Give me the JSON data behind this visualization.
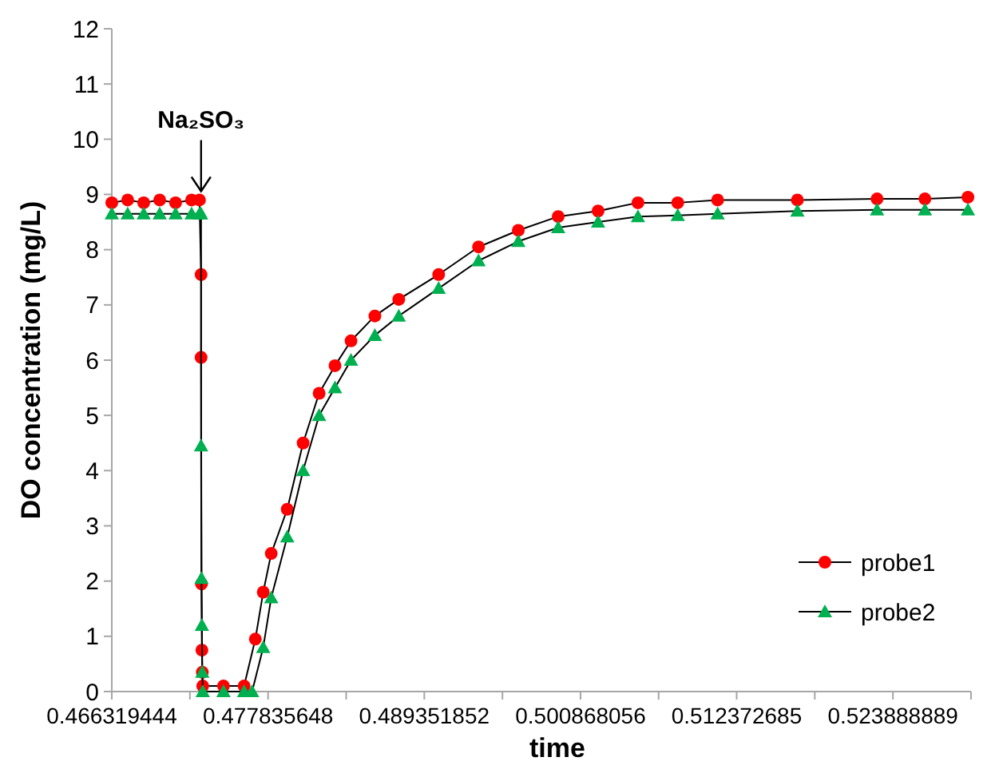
{
  "chart_data": {
    "type": "line",
    "xlabel": "time",
    "ylabel": "DO concentration (mg/L)",
    "xlim": [
      0.466319444,
      0.529647
    ],
    "ylim": [
      0,
      12
    ],
    "xticks": [
      0.466319444,
      {
        "value": 0.472077546,
        "label": null
      },
      0.477835648,
      {
        "value": 0.48359375,
        "label": null
      },
      0.489351852,
      {
        "value": 0.495109954,
        "label": null
      },
      0.500868056,
      {
        "value": 0.50662037,
        "label": null
      },
      0.512372685,
      {
        "value": 0.518130787,
        "label": null
      },
      0.523888889,
      {
        "value": 0.529647,
        "label": null
      }
    ],
    "yticks": [
      0,
      1,
      2,
      3,
      4,
      5,
      6,
      7,
      8,
      9,
      10,
      11,
      12
    ],
    "grid": false,
    "legend": "bottom right",
    "marker": "circle",
    "line_style": "solid",
    "annotations": [
      {
        "text": "Na₂SO₃",
        "x": 0.4729,
        "y": 9
      }
    ],
    "series": [
      {
        "name": "probe1",
        "color": "#ff0000",
        "marker": "circle",
        "x": [
          0.46632,
          0.46749,
          0.46867,
          0.46985,
          0.47102,
          0.4722,
          0.47278,
          0.4729,
          0.4729,
          0.47293,
          0.47296,
          0.47299,
          0.47302,
          0.47455,
          0.47607,
          0.4769,
          0.47748,
          0.47807,
          0.47925,
          0.48042,
          0.4816,
          0.48277,
          0.48395,
          0.48571,
          0.48747,
          0.49041,
          0.49335,
          0.49628,
          0.49922,
          0.50216,
          0.5051,
          0.50803,
          0.51097,
          0.51685,
          0.52272,
          0.52625,
          0.52942
        ],
        "values": [
          8.85,
          8.9,
          8.85,
          8.9,
          8.85,
          8.9,
          8.9,
          7.55,
          6.05,
          1.95,
          0.75,
          0.35,
          0.1,
          0.1,
          0.1,
          0.95,
          1.8,
          2.5,
          3.3,
          4.5,
          5.4,
          5.9,
          6.35,
          6.8,
          7.1,
          7.55,
          8.05,
          8.35,
          8.6,
          8.7,
          8.85,
          8.85,
          8.9,
          8.9,
          8.92,
          8.92,
          8.95
        ]
      },
      {
        "name": "probe2",
        "color": "#00b050",
        "marker": "triangle",
        "x": [
          0.46632,
          0.46749,
          0.46867,
          0.46985,
          0.47102,
          0.4722,
          0.47278,
          0.4729,
          0.4729,
          0.47293,
          0.47296,
          0.47299,
          0.47302,
          0.47455,
          0.47607,
          0.47666,
          0.47748,
          0.47807,
          0.47925,
          0.48042,
          0.4816,
          0.48277,
          0.48395,
          0.48571,
          0.48747,
          0.49041,
          0.49335,
          0.49628,
          0.49922,
          0.50216,
          0.5051,
          0.50803,
          0.51097,
          0.51685,
          0.52272,
          0.52625,
          0.52942
        ],
        "values": [
          8.65,
          8.65,
          8.65,
          8.65,
          8.65,
          8.65,
          8.65,
          8.65,
          4.45,
          2.05,
          1.2,
          0.35,
          0,
          0,
          0,
          0,
          0.8,
          1.7,
          2.8,
          4.0,
          5.0,
          5.5,
          6.0,
          6.45,
          6.8,
          7.3,
          7.8,
          8.15,
          8.4,
          8.5,
          8.6,
          8.62,
          8.65,
          8.7,
          8.72,
          8.72,
          8.72
        ]
      }
    ]
  }
}
